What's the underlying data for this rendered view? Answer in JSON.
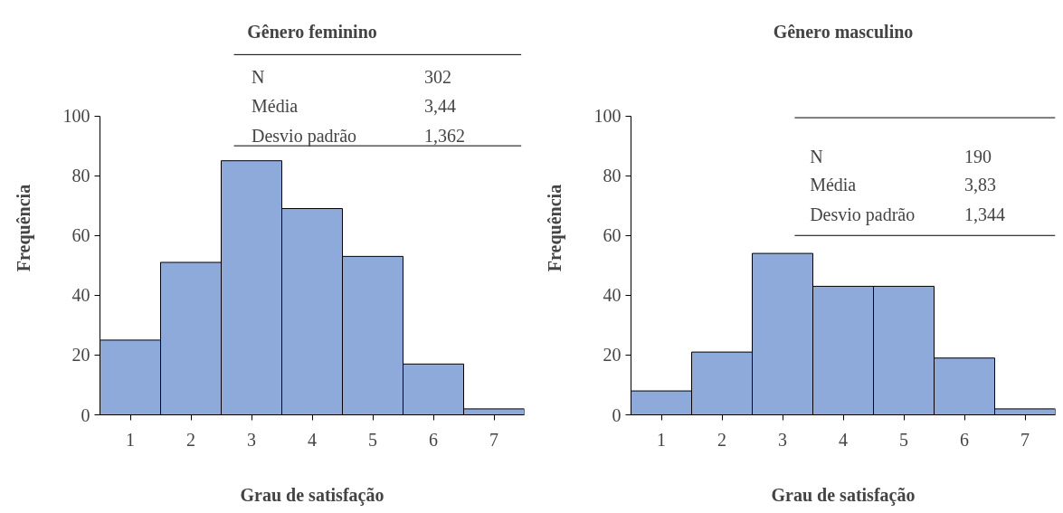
{
  "chart_data": [
    {
      "type": "bar",
      "title": "Gênero feminino",
      "xlabel": "Grau de satisfação",
      "ylabel": "Frequência",
      "categories": [
        "1",
        "2",
        "3",
        "4",
        "5",
        "6",
        "7"
      ],
      "values": [
        25,
        51,
        85,
        69,
        53,
        17,
        2
      ],
      "color": "#8eaadb",
      "ylim": [
        0,
        100
      ],
      "yticks": [
        0,
        20,
        40,
        60,
        80,
        100
      ],
      "grid": false,
      "annotations": [
        "N",
        "302",
        "Média",
        "3,44",
        "Desvio padrão",
        "1,362"
      ]
    },
    {
      "type": "bar",
      "title": "Gênero masculino",
      "xlabel": "Grau de satisfação",
      "ylabel": "Frequência",
      "categories": [
        "1",
        "2",
        "3",
        "4",
        "5",
        "6",
        "7"
      ],
      "values": [
        8,
        21,
        54,
        43,
        43,
        19,
        2
      ],
      "color": "#8eaadb",
      "ylim": [
        0,
        100
      ],
      "yticks": [
        0,
        20,
        40,
        60,
        80,
        100
      ],
      "grid": false,
      "annotations": [
        "N",
        "190",
        "Média",
        "3,83",
        "Desvio padrão",
        "1,344"
      ]
    }
  ]
}
